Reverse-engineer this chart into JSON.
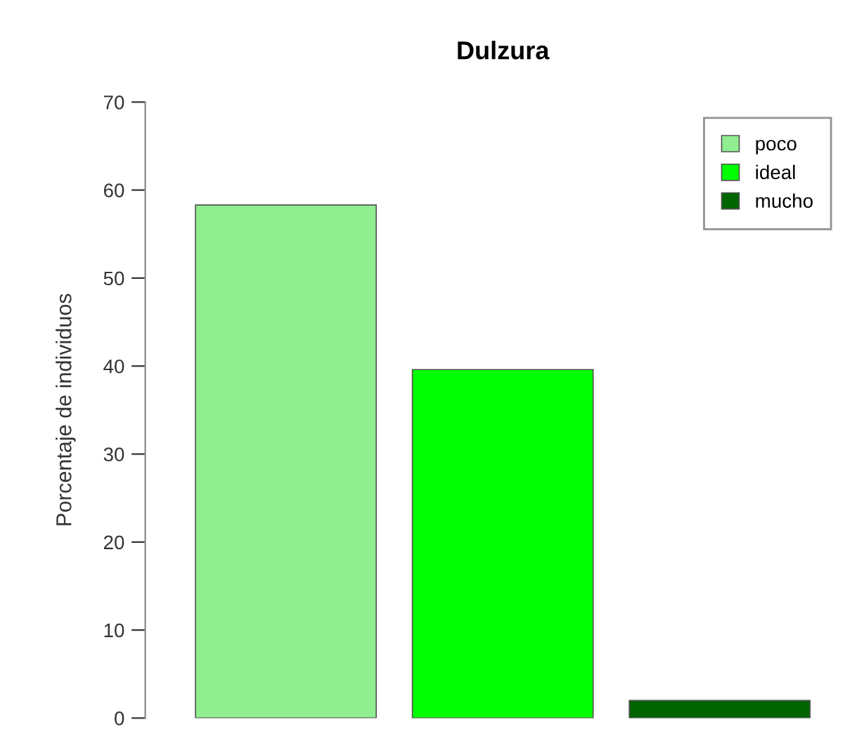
{
  "chart_data": {
    "type": "bar",
    "title": "Dulzura",
    "ylabel": "Porcentaje de individuos",
    "categories": [
      null
    ],
    "series": [
      {
        "name": "poco",
        "color": "#90ee90",
        "values": [
          58.3
        ]
      },
      {
        "name": "ideal",
        "color": "#00ff00",
        "values": [
          39.6
        ]
      },
      {
        "name": "mucho",
        "color": "#006400",
        "values": [
          2.0
        ]
      }
    ],
    "ylim": [
      0,
      70
    ],
    "yticks": [
      0,
      10,
      20,
      30,
      40,
      50,
      60,
      70
    ],
    "legend": "top right",
    "grid": false
  }
}
